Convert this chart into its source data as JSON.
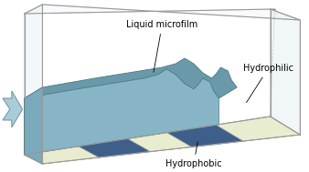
{
  "box_ec": "#999999",
  "box_wall_color": "#e8f0f5",
  "substrate_light": "#e8edcf",
  "substrate_dark": "#3d5f8a",
  "film_top_color": "#6a9aaa",
  "film_side_color": "#88b5c5",
  "film_front_color": "#7aaabb",
  "film_edge_color": "#4a7888",
  "arrow_color": "#a8ccd8",
  "arrow_edge": "#7090a0",
  "label_liquid": "Liquid microfilm",
  "label_hydrophilic": "Hydrophilic",
  "label_hydrophobic": "Hydrophobic",
  "font_size": 7,
  "bg": "#ffffff",
  "stripes": [
    {
      "t0": 0.0,
      "t1": 0.22,
      "light": true
    },
    {
      "t0": 0.22,
      "t1": 0.42,
      "light": false
    },
    {
      "t0": 0.42,
      "t1": 0.58,
      "light": true
    },
    {
      "t0": 0.58,
      "t1": 0.78,
      "light": false
    },
    {
      "t0": 0.78,
      "t1": 1.0,
      "light": true
    }
  ]
}
